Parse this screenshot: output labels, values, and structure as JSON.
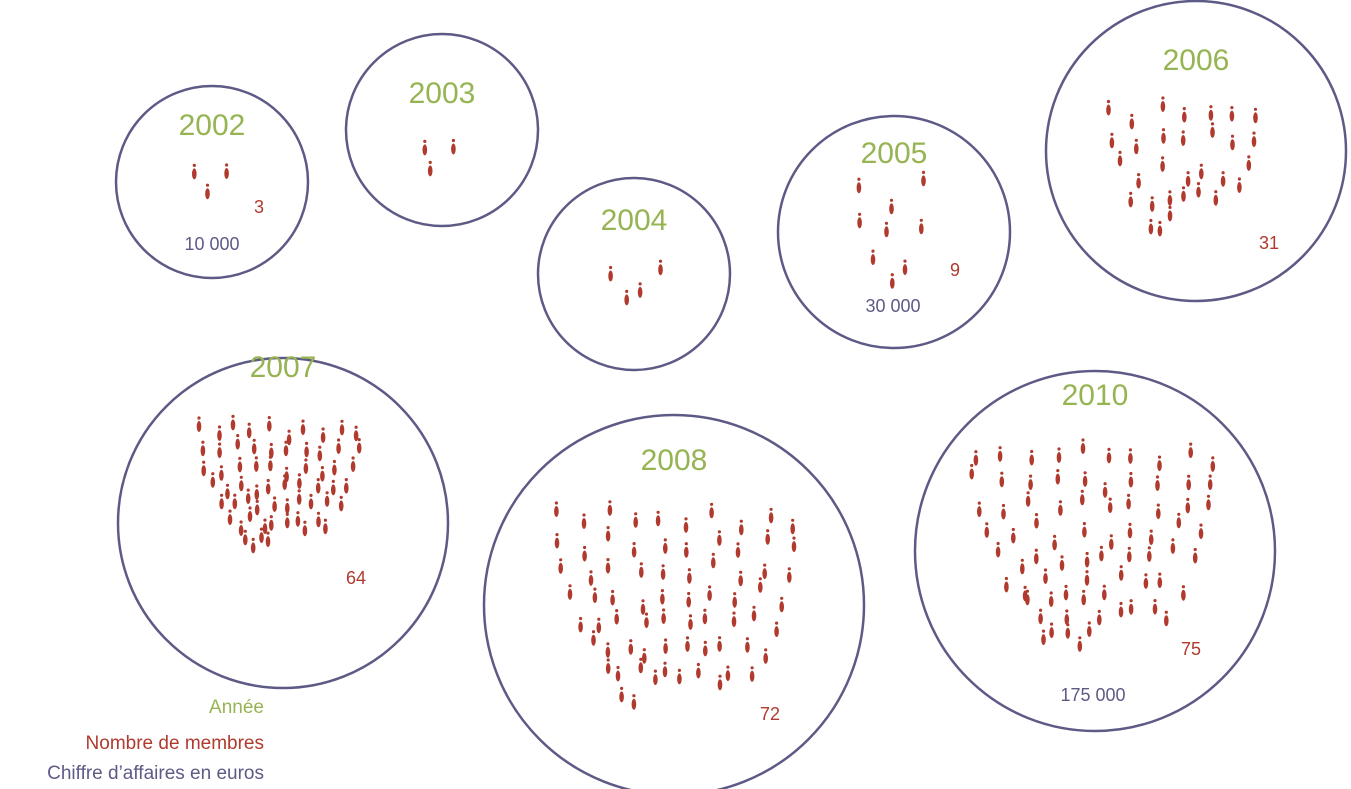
{
  "colors": {
    "year": "#97b453",
    "members": "#b03a2e",
    "revenue": "#5d5a86",
    "circle_stroke": "#5d5a86"
  },
  "icon": "person-icon",
  "legend": {
    "year": "Année",
    "members": "Nombre de membres",
    "revenue": "Chiffre d’affaires en euros"
  },
  "bubbles": [
    {
      "year": "2002",
      "members": "3",
      "revenue": "10 000"
    },
    {
      "year": "2003",
      "members": "",
      "revenue": ""
    },
    {
      "year": "2004",
      "members": "",
      "revenue": ""
    },
    {
      "year": "2005",
      "members": "9",
      "revenue": "30 000"
    },
    {
      "year": "2006",
      "members": "31",
      "revenue": ""
    },
    {
      "year": "2007",
      "members": "64",
      "revenue": ""
    },
    {
      "year": "2008",
      "members": "72",
      "revenue": ""
    },
    {
      "year": "2010",
      "members": "75",
      "revenue": "175 000"
    }
  ]
}
